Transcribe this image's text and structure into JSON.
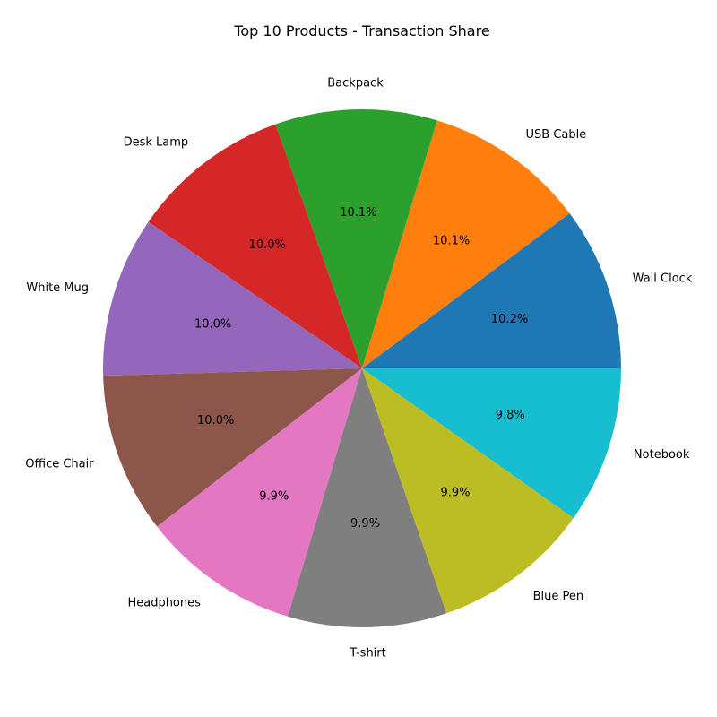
{
  "chart_data": {
    "type": "pie",
    "title": "Top 10 Products - Transaction Share",
    "start_angle_deg": 0,
    "direction": "counterclockwise",
    "slices": [
      {
        "label": "Wall Clock",
        "value": 10.2,
        "pct_label": "10.2%",
        "color": "#1f77b4"
      },
      {
        "label": "USB Cable",
        "value": 10.1,
        "pct_label": "10.1%",
        "color": "#ff7f0e"
      },
      {
        "label": "Backpack",
        "value": 10.1,
        "pct_label": "10.1%",
        "color": "#2ca02c"
      },
      {
        "label": "Desk Lamp",
        "value": 10.0,
        "pct_label": "10.0%",
        "color": "#d62728"
      },
      {
        "label": "White Mug",
        "value": 10.0,
        "pct_label": "10.0%",
        "color": "#9467bd"
      },
      {
        "label": "Office Chair",
        "value": 10.0,
        "pct_label": "10.0%",
        "color": "#8c564b"
      },
      {
        "label": "Headphones",
        "value": 9.9,
        "pct_label": "9.9%",
        "color": "#e377c2"
      },
      {
        "label": "T-shirt",
        "value": 9.9,
        "pct_label": "9.9%",
        "color": "#7f7f7f"
      },
      {
        "label": "Blue Pen",
        "value": 9.9,
        "pct_label": "9.9%",
        "color": "#bcbd22"
      },
      {
        "label": "Notebook",
        "value": 9.8,
        "pct_label": "9.8%",
        "color": "#17becf"
      }
    ]
  }
}
